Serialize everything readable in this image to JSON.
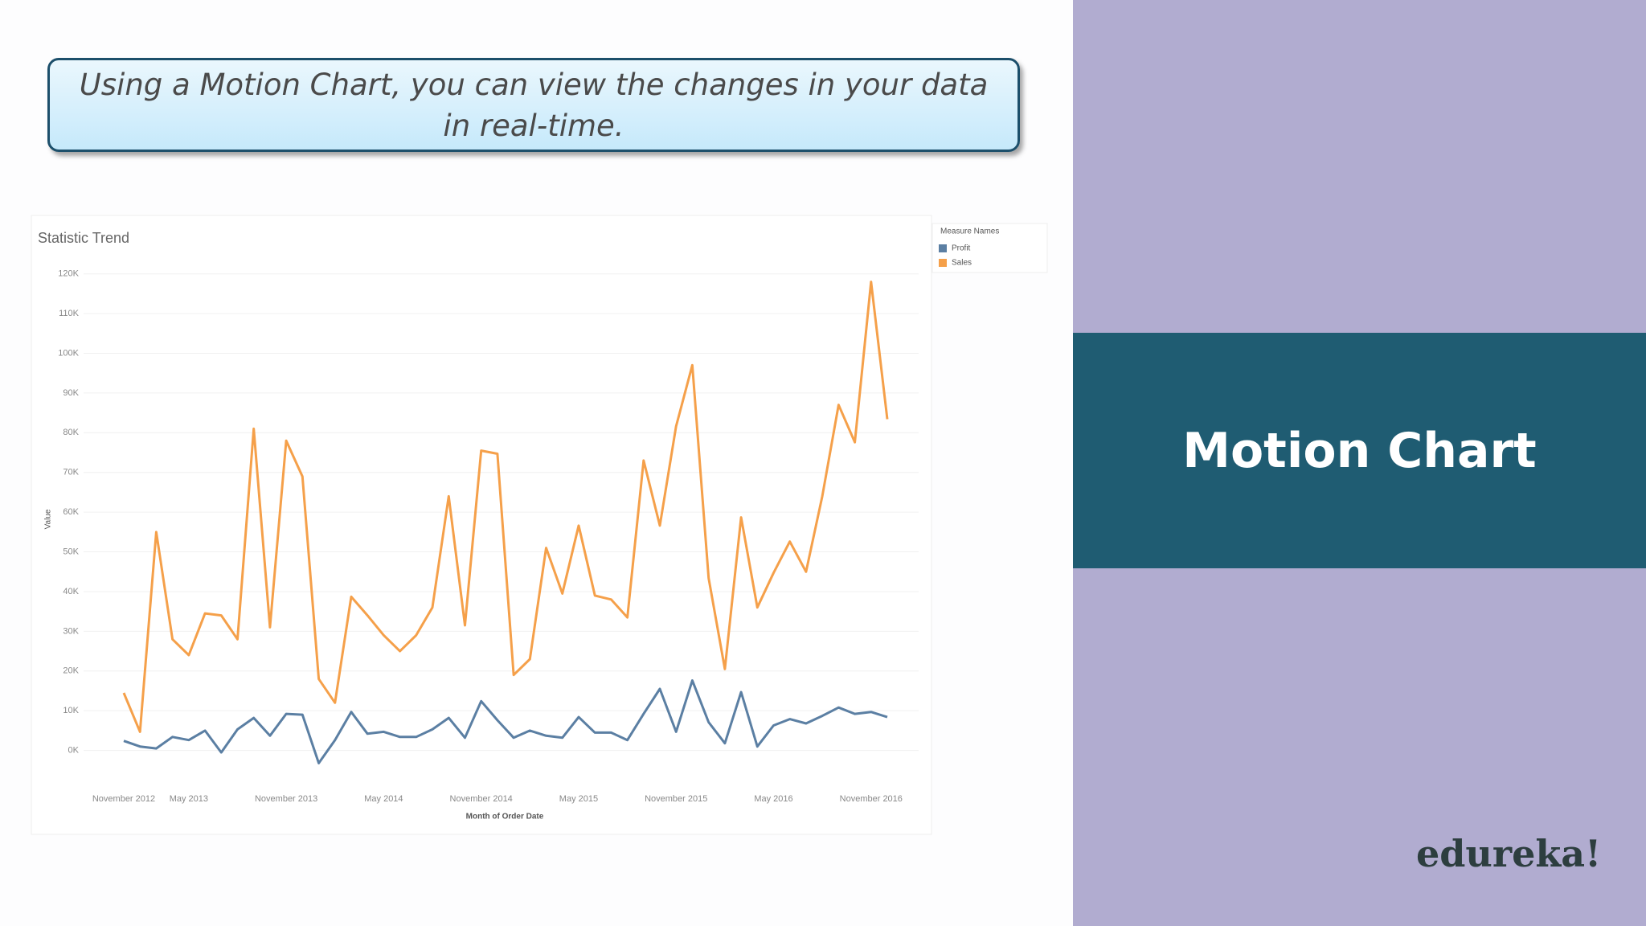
{
  "caption": "Using a Motion Chart, you can view the changes in your data in real-time.",
  "side_title": "Motion Chart",
  "brand": "edureka!",
  "chart_data": {
    "type": "line",
    "title": "Statistic Trend",
    "ylabel": "Value",
    "xlabel": "Month of Order Date",
    "legend_title": "Measure Names",
    "categories": [
      "November 2012",
      null,
      null,
      null,
      "May 2013",
      null,
      null,
      null,
      null,
      null,
      "November 2013",
      null,
      null,
      null,
      null,
      null,
      "May 2014",
      null,
      null,
      null,
      null,
      null,
      "November 2014",
      null,
      null,
      null,
      null,
      null,
      "May 2015",
      null,
      null,
      null,
      null,
      null,
      "November 2015",
      null,
      null,
      null,
      null,
      null,
      "May 2016",
      null,
      null,
      null,
      null,
      null,
      "November 2016",
      null
    ],
    "series": [
      {
        "name": "Profit",
        "color": "#5b7fa3",
        "values": [
          2400,
          1000,
          500,
          3400,
          2600,
          5000,
          -500,
          5300,
          8200,
          3700,
          9200,
          9000,
          -3200,
          2600,
          9700,
          4200,
          4700,
          3400,
          3400,
          5300,
          8200,
          3200,
          12400,
          7600,
          3200,
          5000,
          3700,
          3200,
          8400,
          4500,
          4500,
          2600,
          9200,
          15500,
          4700,
          17600,
          7100,
          1800,
          14700,
          1000,
          6300,
          7900,
          6800,
          8700,
          10800,
          9200,
          9700,
          8400
        ]
      },
      {
        "name": "Sales",
        "color": "#f5a04a",
        "values": [
          14500,
          4700,
          55000,
          28000,
          24000,
          34500,
          34000,
          28000,
          81000,
          31000,
          78000,
          69000,
          18000,
          12000,
          38700,
          34000,
          29000,
          25000,
          29000,
          36000,
          64000,
          31500,
          75500,
          74700,
          19000,
          23000,
          51000,
          39500,
          56600,
          39000,
          38000,
          33500,
          73000,
          56600,
          81600,
          97000,
          43400,
          20500,
          58700,
          36000,
          44700,
          52600,
          45000,
          64000,
          87000,
          77600,
          118000,
          83400
        ]
      }
    ],
    "ylim": [
      -10000,
      125000
    ],
    "yticks": [
      {
        "value": 0,
        "label": "0K"
      },
      {
        "value": 10000,
        "label": "10K"
      },
      {
        "value": 20000,
        "label": "20K"
      },
      {
        "value": 30000,
        "label": "30K"
      },
      {
        "value": 40000,
        "label": "40K"
      },
      {
        "value": 50000,
        "label": "50K"
      },
      {
        "value": 60000,
        "label": "60K"
      },
      {
        "value": 70000,
        "label": "70K"
      },
      {
        "value": 80000,
        "label": "80K"
      },
      {
        "value": 90000,
        "label": "90K"
      },
      {
        "value": 100000,
        "label": "100K"
      },
      {
        "value": 110000,
        "label": "110K"
      },
      {
        "value": 120000,
        "label": "120K"
      }
    ],
    "grid": true
  }
}
